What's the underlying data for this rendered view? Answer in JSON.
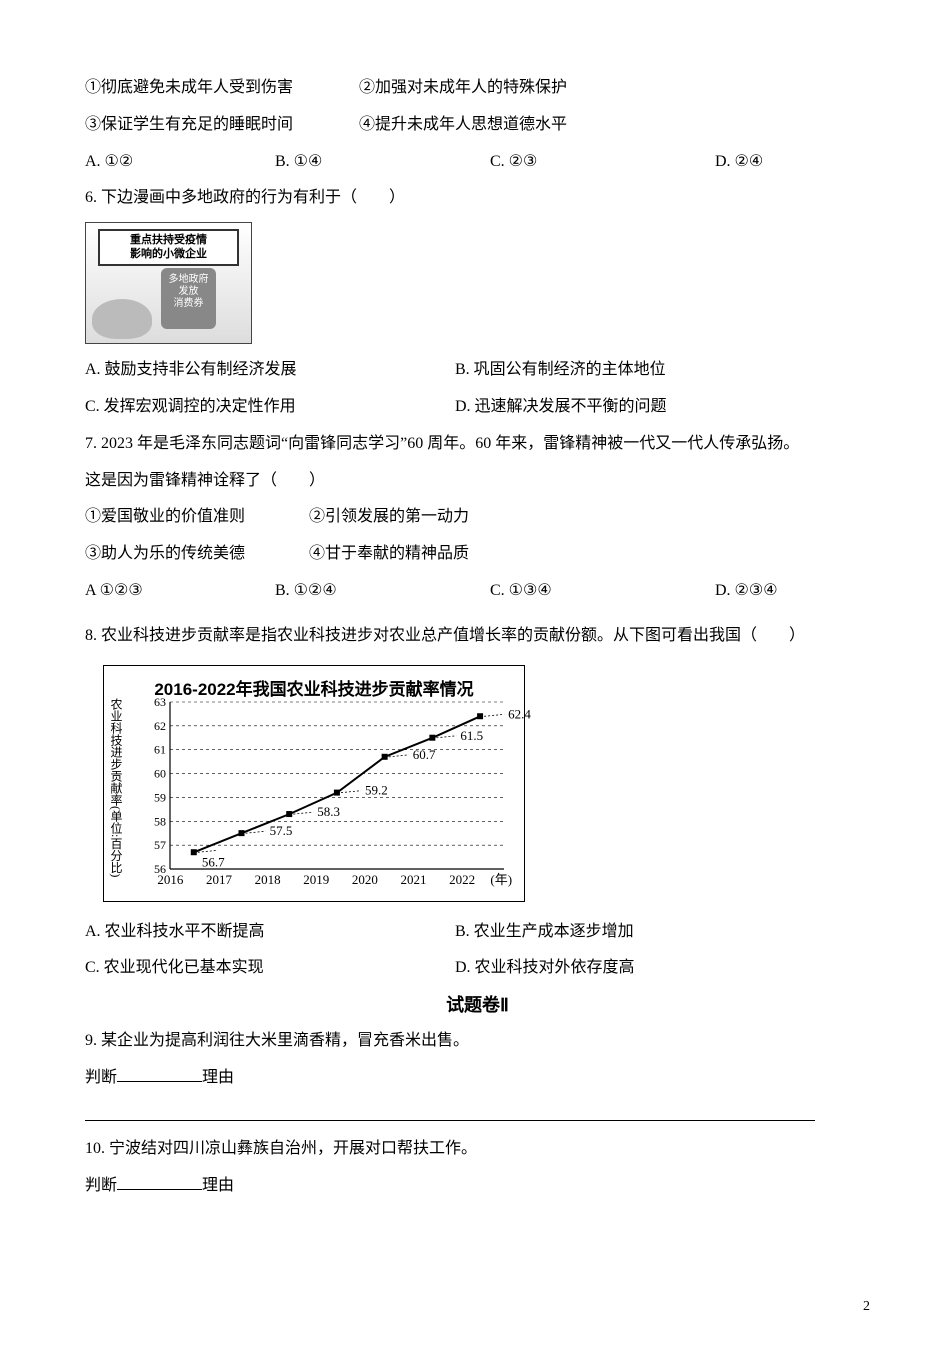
{
  "q5": {
    "stmt1": "①彻底避免未成年人受到伤害",
    "stmt2": "②加强对未成年人的特殊保护",
    "stmt3": "③保证学生有充足的睡眠时间",
    "stmt4": "④提升未成年人思想道德水平",
    "A": "A. ①②",
    "B": "B. ①④",
    "C": "C. ②③",
    "D": "D. ②④"
  },
  "q6": {
    "stem": "6. 下边漫画中多地政府的行为有利于（　　）",
    "cartoon": {
      "banner_l1": "重点扶持受疫情",
      "banner_l2": "影响的小微企业",
      "bubble_l1": "多地政府",
      "bubble_l2": "发放",
      "bubble_l3": "消费券"
    },
    "A": "A.  鼓励支持非公有制经济发展",
    "B": "B.  巩固公有制经济的主体地位",
    "C": "C.  发挥宏观调控的决定性作用",
    "D": "D.  迅速解决发展不平衡的问题"
  },
  "q7": {
    "stem1": "7. 2023 年是毛泽东同志题词“向雷锋同志学习”60 周年。60 年来，雷锋精神被一代又一代人传承弘扬。",
    "stem2": "这是因为雷锋精神诠释了（　　）",
    "stmt1": "①爱国敬业的价值准则",
    "stmt2": "②引领发展的第一动力",
    "stmt3": "③助人为乐的传统美德",
    "stmt4": "④甘于奉献的精神品质",
    "A": "A   ①②③",
    "B": "B. ①②④",
    "C": "C. ①③④",
    "D": "D. ②③④"
  },
  "q8": {
    "stem": "8.  农业科技进步贡献率是指农业科技进步对农业总产值增长率的贡献份额。从下图可看出我国（　　）",
    "A": "A.  农业科技水平不断提高",
    "B": "B.  农业生产成本逐步增加",
    "C": "C.  农业现代化已基本实现",
    "D": "D.  农业科技对外依存度高"
  },
  "chart": {
    "title": "2016-2022年我国农业科技进步贡献率情况",
    "yaxis_label": "农业科技进步贡献率(单位:百分比)",
    "type": "line",
    "xlabels": [
      "2016",
      "2017",
      "2018",
      "2019",
      "2020",
      "2021",
      "2022"
    ],
    "x_unit": "(年)",
    "ylim": [
      56,
      63
    ],
    "yticks": [
      56,
      57,
      58,
      59,
      60,
      61,
      62,
      63
    ],
    "points": [
      {
        "x": "2016",
        "y": 56.7,
        "label": "56.7"
      },
      {
        "x": "2017",
        "y": 57.5,
        "label": "57.5"
      },
      {
        "x": "2018",
        "y": 58.3,
        "label": "58.3"
      },
      {
        "x": "2019",
        "y": 59.2,
        "label": "59.2"
      },
      {
        "x": "2020",
        "y": 60.7,
        "label": "60.7"
      },
      {
        "x": "2021",
        "y": 61.5,
        "label": "61.5"
      },
      {
        "x": "2022",
        "y": 62.4,
        "label": "62.4"
      }
    ],
    "line_color": "#000000",
    "marker_fill": "#000000",
    "axis_color": "#000000",
    "grid_dash": "3,3",
    "background_color": "#ffffff",
    "marker_size": 4,
    "title_fontsize": 17,
    "label_fontsize": 13
  },
  "section2_title": "试题卷Ⅱ",
  "q9": {
    "stem": "9.  某企业为提高利润往大米里滴香精，冒充香米出售。",
    "judge": "判断",
    "reason": "理由"
  },
  "q10": {
    "stem": "10.  宁波结对四川凉山彝族自治州，开展对口帮扶工作。",
    "judge": "判断",
    "reason": "理由"
  },
  "page_number": "2"
}
